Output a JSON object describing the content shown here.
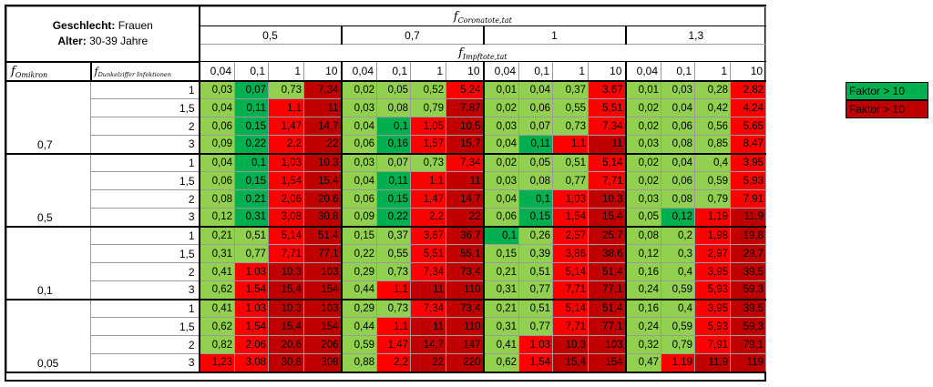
{
  "header": {
    "gender_label": "Geschlecht:",
    "gender_value": "Frauen",
    "age_label": "Alter:",
    "age_value": "30-39 Jahre",
    "coronatote_f": "f",
    "coronatote_sub": "Coronatote,tat",
    "impftote_f": "f",
    "impftote_sub": "Impftote,tat",
    "omikron_f": "f",
    "omikron_sub": "Omikron",
    "dunkelziffer_f": "f",
    "dunkelziffer_sub": "Dunkelziffer Infektionen",
    "coronatote_values": [
      "0,5",
      "0,7",
      "1",
      "1,3"
    ],
    "impftote_values": [
      "0,04",
      "0,1",
      "1",
      "10",
      "0,04",
      "0,1",
      "1",
      "10",
      "0,04",
      "0,1",
      "1",
      "10",
      "0,04",
      "0,1",
      "1",
      "10"
    ]
  },
  "dunkelziffer_values": [
    "1",
    "1,5",
    "2",
    "3"
  ],
  "blocks": [
    {
      "omikron": "0,7",
      "rows": [
        [
          [
            "0,03",
            0
          ],
          [
            "0,07",
            1
          ],
          [
            "0,73",
            0
          ],
          [
            "7,34",
            3
          ],
          [
            "0,02",
            0
          ],
          [
            "0,05",
            0
          ],
          [
            "0,52",
            0
          ],
          [
            "5,24",
            2
          ],
          [
            "0,01",
            0
          ],
          [
            "0,04",
            0
          ],
          [
            "0,37",
            0
          ],
          [
            "3,67",
            2
          ],
          [
            "0,01",
            0
          ],
          [
            "0,03",
            0
          ],
          [
            "0,28",
            0
          ],
          [
            "2,82",
            2
          ]
        ],
        [
          [
            "0,04",
            0
          ],
          [
            "0,11",
            1
          ],
          [
            "1,1",
            2
          ],
          [
            "11",
            3
          ],
          [
            "0,03",
            0
          ],
          [
            "0,08",
            0
          ],
          [
            "0,79",
            0
          ],
          [
            "7,87",
            3
          ],
          [
            "0,02",
            0
          ],
          [
            "0,06",
            0
          ],
          [
            "0,55",
            0
          ],
          [
            "5,51",
            2
          ],
          [
            "0,02",
            0
          ],
          [
            "0,04",
            0
          ],
          [
            "0,42",
            0
          ],
          [
            "4,24",
            2
          ]
        ],
        [
          [
            "0,06",
            0
          ],
          [
            "0,15",
            1
          ],
          [
            "1,47",
            2
          ],
          [
            "14,7",
            3
          ],
          [
            "0,04",
            0
          ],
          [
            "0,1",
            1
          ],
          [
            "1,05",
            2
          ],
          [
            "10,5",
            3
          ],
          [
            "0,03",
            0
          ],
          [
            "0,07",
            0
          ],
          [
            "0,73",
            0
          ],
          [
            "7,34",
            2
          ],
          [
            "0,02",
            0
          ],
          [
            "0,06",
            0
          ],
          [
            "0,56",
            0
          ],
          [
            "5,65",
            2
          ]
        ],
        [
          [
            "0,09",
            0
          ],
          [
            "0,22",
            1
          ],
          [
            "2,2",
            2
          ],
          [
            "22",
            3
          ],
          [
            "0,06",
            0
          ],
          [
            "0,16",
            1
          ],
          [
            "1,57",
            2
          ],
          [
            "15,7",
            3
          ],
          [
            "0,04",
            0
          ],
          [
            "0,11",
            1
          ],
          [
            "1,1",
            2
          ],
          [
            "11",
            3
          ],
          [
            "0,03",
            0
          ],
          [
            "0,08",
            0
          ],
          [
            "0,85",
            0
          ],
          [
            "8,47",
            2
          ]
        ]
      ]
    },
    {
      "omikron": "0,5",
      "rows": [
        [
          [
            "0,04",
            0
          ],
          [
            "0,1",
            1
          ],
          [
            "1,03",
            2
          ],
          [
            "10,3",
            3
          ],
          [
            "0,03",
            0
          ],
          [
            "0,07",
            0
          ],
          [
            "0,73",
            0
          ],
          [
            "7,34",
            2
          ],
          [
            "0,02",
            0
          ],
          [
            "0,05",
            0
          ],
          [
            "0,51",
            0
          ],
          [
            "5,14",
            2
          ],
          [
            "0,02",
            0
          ],
          [
            "0,04",
            0
          ],
          [
            "0,4",
            0
          ],
          [
            "3,95",
            2
          ]
        ],
        [
          [
            "0,06",
            0
          ],
          [
            "0,15",
            1
          ],
          [
            "1,54",
            2
          ],
          [
            "15,4",
            3
          ],
          [
            "0,04",
            0
          ],
          [
            "0,11",
            1
          ],
          [
            "1,1",
            2
          ],
          [
            "11",
            3
          ],
          [
            "0,03",
            0
          ],
          [
            "0,08",
            0
          ],
          [
            "0,77",
            0
          ],
          [
            "7,71",
            2
          ],
          [
            "0,02",
            0
          ],
          [
            "0,06",
            0
          ],
          [
            "0,59",
            0
          ],
          [
            "5,93",
            2
          ]
        ],
        [
          [
            "0,08",
            0
          ],
          [
            "0,21",
            1
          ],
          [
            "2,06",
            2
          ],
          [
            "20,6",
            3
          ],
          [
            "0,06",
            0
          ],
          [
            "0,15",
            1
          ],
          [
            "1,47",
            2
          ],
          [
            "14,7",
            3
          ],
          [
            "0,04",
            0
          ],
          [
            "0,1",
            1
          ],
          [
            "1,03",
            2
          ],
          [
            "10,3",
            3
          ],
          [
            "0,03",
            0
          ],
          [
            "0,08",
            0
          ],
          [
            "0,79",
            0
          ],
          [
            "7,91",
            2
          ]
        ],
        [
          [
            "0,12",
            0
          ],
          [
            "0,31",
            1
          ],
          [
            "3,08",
            2
          ],
          [
            "30,8",
            3
          ],
          [
            "0,09",
            0
          ],
          [
            "0,22",
            1
          ],
          [
            "2,2",
            2
          ],
          [
            "22",
            3
          ],
          [
            "0,06",
            0
          ],
          [
            "0,15",
            1
          ],
          [
            "1,54",
            2
          ],
          [
            "15,4",
            3
          ],
          [
            "0,05",
            0
          ],
          [
            "0,12",
            1
          ],
          [
            "1,19",
            2
          ],
          [
            "11,9",
            3
          ]
        ]
      ]
    },
    {
      "omikron": "0,1",
      "rows": [
        [
          [
            "0,21",
            0
          ],
          [
            "0,51",
            0
          ],
          [
            "5,14",
            2
          ],
          [
            "51,4",
            3
          ],
          [
            "0,15",
            0
          ],
          [
            "0,37",
            0
          ],
          [
            "3,67",
            2
          ],
          [
            "36,7",
            3
          ],
          [
            "0,1",
            1
          ],
          [
            "0,26",
            0
          ],
          [
            "2,57",
            2
          ],
          [
            "25,7",
            3
          ],
          [
            "0,08",
            0
          ],
          [
            "0,2",
            0
          ],
          [
            "1,98",
            2
          ],
          [
            "19,8",
            3
          ]
        ],
        [
          [
            "0,31",
            0
          ],
          [
            "0,77",
            0
          ],
          [
            "7,71",
            2
          ],
          [
            "77,1",
            3
          ],
          [
            "0,22",
            0
          ],
          [
            "0,55",
            0
          ],
          [
            "5,51",
            2
          ],
          [
            "55,1",
            3
          ],
          [
            "0,15",
            0
          ],
          [
            "0,39",
            0
          ],
          [
            "3,86",
            2
          ],
          [
            "38,6",
            3
          ],
          [
            "0,12",
            0
          ],
          [
            "0,3",
            0
          ],
          [
            "2,97",
            2
          ],
          [
            "29,7",
            3
          ]
        ],
        [
          [
            "0,41",
            0
          ],
          [
            "1,03",
            2
          ],
          [
            "10,3",
            3
          ],
          [
            "103",
            3
          ],
          [
            "0,29",
            0
          ],
          [
            "0,73",
            0
          ],
          [
            "7,34",
            2
          ],
          [
            "73,4",
            3
          ],
          [
            "0,21",
            0
          ],
          [
            "0,51",
            0
          ],
          [
            "5,14",
            2
          ],
          [
            "51,4",
            3
          ],
          [
            "0,16",
            0
          ],
          [
            "0,4",
            0
          ],
          [
            "3,95",
            2
          ],
          [
            "39,5",
            3
          ]
        ],
        [
          [
            "0,62",
            0
          ],
          [
            "1,54",
            2
          ],
          [
            "15,4",
            3
          ],
          [
            "154",
            3
          ],
          [
            "0,44",
            0
          ],
          [
            "1,1",
            2
          ],
          [
            "11",
            3
          ],
          [
            "110",
            3
          ],
          [
            "0,31",
            0
          ],
          [
            "0,77",
            0
          ],
          [
            "7,71",
            2
          ],
          [
            "77,1",
            3
          ],
          [
            "0,24",
            0
          ],
          [
            "0,59",
            0
          ],
          [
            "5,93",
            2
          ],
          [
            "59,3",
            3
          ]
        ]
      ]
    },
    {
      "omikron": "0,05",
      "rows": [
        [
          [
            "0,41",
            0
          ],
          [
            "1,03",
            2
          ],
          [
            "10,3",
            3
          ],
          [
            "103",
            3
          ],
          [
            "0,29",
            0
          ],
          [
            "0,73",
            0
          ],
          [
            "7,34",
            2
          ],
          [
            "73,4",
            3
          ],
          [
            "0,21",
            0
          ],
          [
            "0,51",
            0
          ],
          [
            "5,14",
            2
          ],
          [
            "51,4",
            3
          ],
          [
            "0,16",
            0
          ],
          [
            "0,4",
            0
          ],
          [
            "3,95",
            2
          ],
          [
            "39,5",
            3
          ]
        ],
        [
          [
            "0,62",
            0
          ],
          [
            "1,54",
            2
          ],
          [
            "15,4",
            3
          ],
          [
            "154",
            3
          ],
          [
            "0,44",
            0
          ],
          [
            "1,1",
            2
          ],
          [
            "11",
            3
          ],
          [
            "110",
            3
          ],
          [
            "0,31",
            0
          ],
          [
            "0,77",
            0
          ],
          [
            "7,71",
            2
          ],
          [
            "77,1",
            3
          ],
          [
            "0,24",
            0
          ],
          [
            "0,59",
            0
          ],
          [
            "5,93",
            2
          ],
          [
            "59,3",
            3
          ]
        ],
        [
          [
            "0,82",
            0
          ],
          [
            "2,06",
            2
          ],
          [
            "20,6",
            3
          ],
          [
            "206",
            3
          ],
          [
            "0,59",
            0
          ],
          [
            "1,47",
            2
          ],
          [
            "14,7",
            3
          ],
          [
            "147",
            3
          ],
          [
            "0,41",
            0
          ],
          [
            "1,03",
            2
          ],
          [
            "10,3",
            3
          ],
          [
            "103",
            3
          ],
          [
            "0,32",
            0
          ],
          [
            "0,79",
            0
          ],
          [
            "7,91",
            2
          ],
          [
            "79,1",
            3
          ]
        ],
        [
          [
            "1,23",
            2
          ],
          [
            "3,08",
            2
          ],
          [
            "30,8",
            3
          ],
          [
            "308",
            3
          ],
          [
            "0,88",
            0
          ],
          [
            "2,2",
            2
          ],
          [
            "22",
            3
          ],
          [
            "220",
            3
          ],
          [
            "0,62",
            0
          ],
          [
            "1,54",
            2
          ],
          [
            "15,4",
            3
          ],
          [
            "154",
            3
          ],
          [
            "0,47",
            0
          ],
          [
            "1,19",
            2
          ],
          [
            "11,9",
            3
          ],
          [
            "119",
            3
          ]
        ]
      ]
    }
  ],
  "cell_colors": [
    "#92d050",
    "#00b050",
    "#ff0000",
    "#c00000"
  ],
  "legend": [
    {
      "label": "Faktor > 10",
      "color": "#00b050"
    },
    {
      "label": "Faktor > 10",
      "color": "#c00000"
    }
  ]
}
